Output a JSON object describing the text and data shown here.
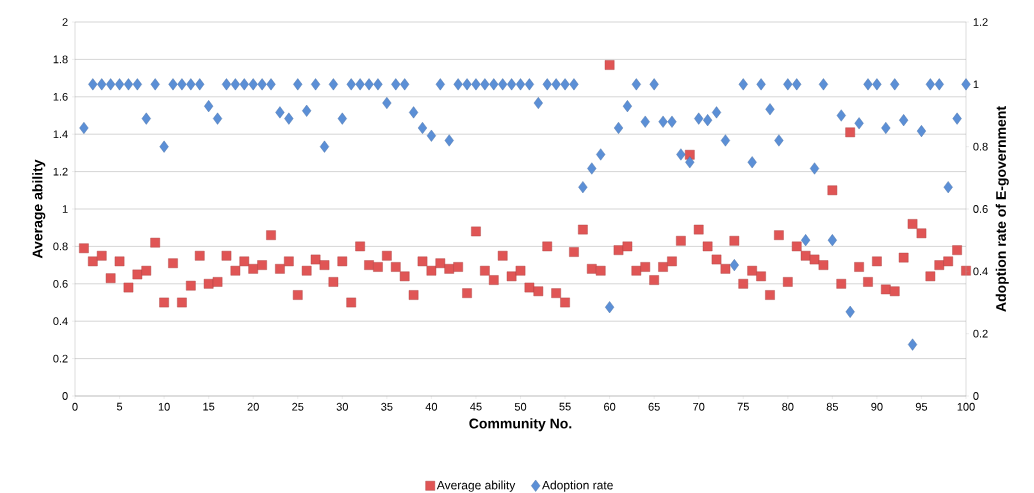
{
  "chart_data": {
    "type": "scatter",
    "xlabel": "Community No.",
    "ylabel": "Average ability",
    "y2label": "Adoption rate of E-government",
    "xlim": [
      0,
      100
    ],
    "xticks": [
      0,
      5,
      10,
      15,
      20,
      25,
      30,
      35,
      40,
      45,
      50,
      55,
      60,
      65,
      70,
      75,
      80,
      85,
      90,
      95,
      100
    ],
    "ylim": [
      0,
      2
    ],
    "yticks": [
      0,
      0.2,
      0.4,
      0.6,
      0.8,
      1,
      1.2,
      1.4,
      1.6,
      1.8,
      2
    ],
    "y2lim": [
      0,
      1.2
    ],
    "y2ticks": [
      0,
      0.2,
      0.4,
      0.6,
      0.8,
      1,
      1.2
    ],
    "grid": "y",
    "legend": "bottom",
    "x": [
      1,
      2,
      3,
      4,
      5,
      6,
      7,
      8,
      9,
      10,
      11,
      12,
      13,
      14,
      15,
      16,
      17,
      18,
      19,
      20,
      21,
      22,
      23,
      24,
      25,
      26,
      27,
      28,
      29,
      30,
      31,
      32,
      33,
      34,
      35,
      36,
      37,
      38,
      39,
      40,
      41,
      42,
      43,
      44,
      45,
      46,
      47,
      48,
      49,
      50,
      51,
      52,
      53,
      54,
      55,
      56,
      57,
      58,
      59,
      60,
      61,
      62,
      63,
      64,
      65,
      66,
      67,
      68,
      69,
      70,
      71,
      72,
      73,
      74,
      75,
      76,
      77,
      78,
      79,
      80,
      81,
      82,
      83,
      84,
      85,
      86,
      87,
      88,
      89,
      90,
      91,
      92,
      93,
      94,
      95,
      96,
      97,
      98,
      99,
      100
    ],
    "series": [
      {
        "name": "Average ability",
        "color": "#e05555",
        "marker": "square",
        "values": [
          0.79,
          0.72,
          0.75,
          0.63,
          0.72,
          0.58,
          0.65,
          0.67,
          0.82,
          0.5,
          0.71,
          0.5,
          0.59,
          0.75,
          0.6,
          0.61,
          0.75,
          0.67,
          0.72,
          0.68,
          0.7,
          0.86,
          0.68,
          0.72,
          0.54,
          0.67,
          0.73,
          0.7,
          0.61,
          0.72,
          0.5,
          0.8,
          0.7,
          0.69,
          0.75,
          0.69,
          0.64,
          0.54,
          0.72,
          0.67,
          0.71,
          0.68,
          0.69,
          0.55,
          0.88,
          0.67,
          0.62,
          0.75,
          0.64,
          0.67,
          0.58,
          0.56,
          0.8,
          0.55,
          0.5,
          0.77,
          0.89,
          0.68,
          0.67,
          1.77,
          0.78,
          0.8,
          0.67,
          0.69,
          0.62,
          0.69,
          0.72,
          0.83,
          1.29,
          0.89,
          0.8,
          0.73,
          0.68,
          0.83,
          0.6,
          0.67,
          0.64,
          0.54,
          0.86,
          0.61,
          0.8,
          0.75,
          0.73,
          0.7,
          1.1,
          0.6,
          1.41,
          0.69,
          0.61,
          0.72,
          0.57,
          0.56,
          0.74,
          0.92,
          0.87,
          0.64,
          0.7,
          0.72,
          0.78,
          0.67
        ]
      },
      {
        "name": "Adoption rate",
        "color": "#5b8fd6",
        "marker": "diamond",
        "axis": "y2",
        "values": [
          0.86,
          1,
          1,
          1,
          1,
          1,
          1,
          0.89,
          1,
          0.8,
          1,
          1,
          1,
          1,
          0.93,
          0.89,
          1,
          1,
          1,
          1,
          1,
          1,
          0.91,
          0.89,
          1,
          0.915,
          1,
          0.8,
          1,
          0.89,
          1,
          1,
          1,
          1,
          0.94,
          1,
          1,
          0.91,
          0.86,
          0.835,
          1,
          0.82,
          1,
          1,
          1,
          1,
          1,
          1,
          1,
          1,
          1,
          0.94,
          1,
          1,
          1,
          1,
          0.67,
          0.73,
          0.775,
          0.285,
          0.86,
          0.93,
          1,
          0.88,
          1,
          0.88,
          0.88,
          0.775,
          0.75,
          0.89,
          0.885,
          0.91,
          0.82,
          0.42,
          1,
          0.75,
          1,
          0.92,
          0.82,
          1,
          1,
          0.5,
          0.73,
          1,
          0.5,
          0.9,
          0.27,
          0.875,
          1,
          1,
          0.86,
          1,
          0.885,
          0.165,
          0.85,
          1,
          1,
          0.67,
          0.89,
          1
        ]
      }
    ]
  }
}
